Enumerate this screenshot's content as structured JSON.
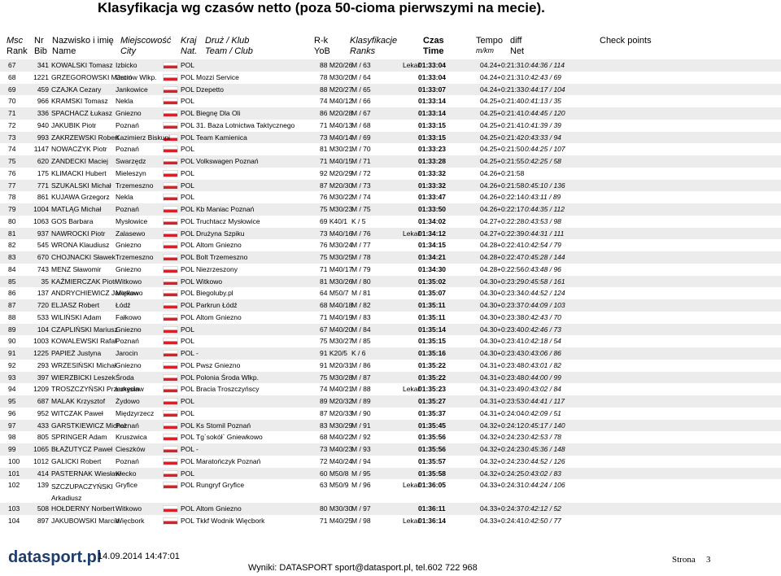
{
  "header": {
    "title": "Klasyfikacja wg czasów netto (poza 50-cioma pierwszymi na mecie).",
    "columns": [
      {
        "top": "Msc",
        "bottom": "Rank"
      },
      {
        "top": "Nr",
        "bottom": "Bib"
      },
      {
        "top": "Nazwisko i imię",
        "bottom": "Name"
      },
      {
        "top": "Miejscowość",
        "bottom": "City"
      },
      {
        "top": "Kraj",
        "bottom": "Nat."
      },
      {
        "top": "Druż / Klub",
        "bottom": "Team / Club"
      },
      {
        "top": "R-k",
        "bottom": "YoB"
      },
      {
        "top": "Klasyfikacje",
        "bottom": "Ranks"
      },
      {
        "top": "Czas",
        "bottom": "Time"
      },
      {
        "top": "Tempo",
        "bottom": "m/km"
      },
      {
        "top": "diff",
        "bottom": "Net"
      },
      {
        "top": "Check points"
      }
    ]
  },
  "table": {
    "rows": [
      {
        "rank": "67",
        "bib": "341",
        "name": "KOWALSKI Tomasz",
        "city": "Izbicko",
        "nat": "POL",
        "yob": "88 M20/26",
        "ranks": "M / 63",
        "note": "Lekař",
        "time": "01:33:04",
        "tempo": "04.24",
        "diff": "+0:21:31",
        "net": "0:44:36 / 114"
      },
      {
        "rank": "68",
        "bib": "1221",
        "name": "GRZEGOROWSKI Marcin",
        "city": "Ostrów Wlkp.",
        "nat": "POL",
        "club": "Mozzi Service",
        "yob": "78 M30/20",
        "ranks": "M / 64",
        "time": "01:33:04",
        "tempo": "04.24",
        "diff": "+0:21:31",
        "net": "0:42:43 / 69"
      },
      {
        "rank": "69",
        "bib": "459",
        "name": "CZAJKA Cezary",
        "city": "Jankowice",
        "nat": "POL",
        "club": "Dzepetto",
        "yob": "88 M20/27",
        "ranks": "M / 65",
        "time": "01:33:07",
        "tempo": "04.24",
        "diff": "+0:21:33",
        "net": "0:44:17 / 104"
      },
      {
        "rank": "70",
        "bib": "966",
        "name": "KRAMSKI Tomasz",
        "city": "Nekla",
        "nat": "POL",
        "yob": "74 M40/12",
        "ranks": "M / 66",
        "time": "01:33:14",
        "tempo": "04.25",
        "diff": "+0:21:40",
        "net": "0:41:13 / 35"
      },
      {
        "rank": "71",
        "bib": "336",
        "name": "SPACHACZ Łukasz",
        "city": "Gniezno",
        "nat": "POL",
        "club": "Biegnę Dla Oli",
        "yob": "86 M20/28",
        "ranks": "M / 67",
        "time": "01:33:14",
        "tempo": "04.25",
        "diff": "+0:21:41",
        "net": "0:44:45 / 120"
      },
      {
        "rank": "72",
        "bib": "940",
        "name": "JAKUBIK Piotr",
        "city": "Poznań",
        "nat": "POL",
        "club": "31. Baza Lotnictwa Taktycznego",
        "yob": "71 M40/13",
        "ranks": "M / 68",
        "time": "01:33:15",
        "tempo": "04.25",
        "diff": "+0:21:41",
        "net": "0:41:39 / 39"
      },
      {
        "rank": "73",
        "bib": "993",
        "name": "ZAKRZEWSKI Robert",
        "city": "Kazimierz Biskupi",
        "nat": "POL",
        "club": "Team Kamienica",
        "yob": "73 M40/14",
        "ranks": "M / 69",
        "time": "01:33:15",
        "tempo": "04.25",
        "diff": "+0:21:42",
        "net": "0:43:33 / 94"
      },
      {
        "rank": "74",
        "bib": "1147",
        "name": "NOWACZYK Piotr",
        "city": "Poznań",
        "nat": "POL",
        "yob": "81 M30/21",
        "ranks": "M / 70",
        "time": "01:33:23",
        "tempo": "04.25",
        "diff": "+0:21:50",
        "net": "0:44:25 / 107"
      },
      {
        "rank": "75",
        "bib": "620",
        "name": "ZANDECKI Maciej",
        "city": "Swarzędz",
        "nat": "POL",
        "club": "Volkswagen Poznań",
        "yob": "71 M40/15",
        "ranks": "M / 71",
        "time": "01:33:28",
        "tempo": "04.25",
        "diff": "+0:21:55",
        "net": "0:42:25 / 58"
      },
      {
        "rank": "76",
        "bib": "175",
        "name": "KLIMACKI Hubert",
        "city": "Mieleszyn",
        "nat": "POL",
        "yob": "92 M20/29",
        "ranks": "M / 72",
        "time": "01:33:32",
        "tempo": "04.26",
        "diff": "+0:21:58"
      },
      {
        "rank": "77",
        "bib": "771",
        "name": "SZUKALSKI Michał",
        "city": "Trzemeszno",
        "nat": "POL",
        "yob": "87 M20/30",
        "ranks": "M / 73",
        "time": "01:33:32",
        "tempo": "04.26",
        "diff": "+0:21:58",
        "net": "0:45:10 / 136"
      },
      {
        "rank": "78",
        "bib": "861",
        "name": "KUJAWA Grzegorz",
        "city": "Nekla",
        "nat": "POL",
        "yob": "76 M30/22",
        "ranks": "M / 74",
        "time": "01:33:47",
        "tempo": "04.26",
        "diff": "+0:22:14",
        "net": "0:43:11 / 89"
      },
      {
        "rank": "79",
        "bib": "1004",
        "name": "MATLĄG Michał",
        "city": "Poznań",
        "nat": "POL",
        "club": "Kb Maniac Poznań",
        "yob": "75 M30/23",
        "ranks": "M / 75",
        "time": "01:33:50",
        "tempo": "04.26",
        "diff": "+0:22:17",
        "net": "0:44:35 / 112"
      },
      {
        "rank": "80",
        "bib": "1063",
        "name": "GOS Barbara",
        "city": "Mysłowice",
        "nat": "POL",
        "club": "Truchtacz Mysłowice",
        "yob": "69 K40/1",
        "ranks": "K / 5",
        "time": "01:34:02",
        "tempo": "04.27",
        "diff": "+0:22:28",
        "net": "0:43:53 / 98"
      },
      {
        "rank": "81",
        "bib": "937",
        "name": "NAWROCKI Piotr",
        "city": "Zalasewo",
        "nat": "POL",
        "club": "Drużyna Szpiku",
        "yob": "73 M40/16",
        "ranks": "M / 76",
        "note": "Lekař",
        "time": "01:34:12",
        "tempo": "04.27",
        "diff": "+0:22:39",
        "net": "0:44:31 / 111"
      },
      {
        "rank": "82",
        "bib": "545",
        "name": "WRONA Klaudiusz",
        "city": "Gniezno",
        "nat": "POL",
        "club": "Altom Gniezno",
        "yob": "76 M30/24",
        "ranks": "M / 77",
        "time": "01:34:15",
        "tempo": "04.28",
        "diff": "+0:22:41",
        "net": "0:42:54 / 79"
      },
      {
        "rank": "83",
        "bib": "670",
        "name": "CHOJNACKI Sławek",
        "city": "Trzemeszno",
        "nat": "POL",
        "club": "Bolt Trzemeszno",
        "yob": "75 M30/25",
        "ranks": "M / 78",
        "time": "01:34:21",
        "tempo": "04.28",
        "diff": "+0:22:47",
        "net": "0:45:28 / 144"
      },
      {
        "rank": "84",
        "bib": "743",
        "name": "MENZ Sławomir",
        "city": "Gniezno",
        "nat": "POL",
        "club": "Niezrzeszony",
        "yob": "71 M40/17",
        "ranks": "M / 79",
        "time": "01:34:30",
        "tempo": "04.28",
        "diff": "+0:22:56",
        "net": "0:43:48 / 96"
      },
      {
        "rank": "85",
        "bib": "35",
        "name": "KAŹMIERCZAK Piotr",
        "city": "Witkowo",
        "nat": "POL",
        "club": "Witkowo",
        "yob": "81 M30/26",
        "ranks": "M / 80",
        "time": "01:35:02",
        "tempo": "04.30",
        "diff": "+0:23:29",
        "net": "0:45:58 / 161"
      },
      {
        "rank": "86",
        "bib": "137",
        "name": "ANDRYCHIEWICZ Jarosław",
        "city": "Miękowo",
        "nat": "POL",
        "club": "Biegoluby.pl",
        "yob": "64 M50/7",
        "ranks": "M / 81",
        "time": "01:35:07",
        "tempo": "04.30",
        "diff": "+0:23:34",
        "net": "0:44:52 / 124"
      },
      {
        "rank": "87",
        "bib": "720",
        "name": "ELJASZ Robert",
        "city": "Łódź",
        "nat": "POL",
        "club": "Parkrun Łódź",
        "yob": "68 M40/18",
        "ranks": "M / 82",
        "time": "01:35:11",
        "tempo": "04.30",
        "diff": "+0:23:37",
        "net": "0:44:09 / 103"
      },
      {
        "rank": "88",
        "bib": "533",
        "name": "WILIŃSKI Adam",
        "city": "Fałkowo",
        "nat": "POL",
        "club": "Altom Gniezno",
        "yob": "71 M40/19",
        "ranks": "M / 83",
        "time": "01:35:11",
        "tempo": "04.30",
        "diff": "+0:23:38",
        "net": "0:42:43 / 70"
      },
      {
        "rank": "89",
        "bib": "104",
        "name": "CZAPLIŃSKI Mariusz",
        "city": "Gniezno",
        "nat": "POL",
        "yob": "67 M40/20",
        "ranks": "M / 84",
        "time": "01:35:14",
        "tempo": "04.30",
        "diff": "+0:23:40",
        "net": "0:42:46 / 73"
      },
      {
        "rank": "90",
        "bib": "1003",
        "name": "KOWALEWSKI Rafał",
        "city": "Poznań",
        "nat": "POL",
        "yob": "75 M30/27",
        "ranks": "M / 85",
        "time": "01:35:15",
        "tempo": "04.30",
        "diff": "+0:23:41",
        "net": "0:42:18 / 54"
      },
      {
        "rank": "91",
        "bib": "1225",
        "name": "PAPIEŻ Justyna",
        "city": "Jarocin",
        "nat": "POL",
        "club": "-",
        "yob": "91 K20/5",
        "ranks": "K / 6",
        "time": "01:35:16",
        "tempo": "04.30",
        "diff": "+0:23:43",
        "net": "0:43:06 / 86"
      },
      {
        "rank": "92",
        "bib": "293",
        "name": "WRZESIŃSKI Michał",
        "city": "Gniezno",
        "nat": "POL",
        "club": "Pwsz Gniezno",
        "yob": "91 M20/31",
        "ranks": "M / 86",
        "time": "01:35:22",
        "tempo": "04.31",
        "diff": "+0:23:48",
        "net": "0:43:01 / 82"
      },
      {
        "rank": "93",
        "bib": "397",
        "name": "WIERZBICKI Leszek",
        "city": "Środa",
        "nat": "POL",
        "club": "Polonia Środa Wlkp.",
        "yob": "75 M30/28",
        "ranks": "M / 87",
        "time": "01:35:22",
        "tempo": "04.31",
        "diff": "+0:23:48",
        "net": "0:44:00 / 99"
      },
      {
        "rank": "94",
        "bib": "1209",
        "name": "TROSZCZYŃSKI Przemysław",
        "city": "Łukęcin",
        "nat": "POL",
        "club": "Bracia Troszczyńscy",
        "yob": "74 M40/21",
        "ranks": "M / 88",
        "note": "Lekař",
        "time": "01:35:23",
        "tempo": "04.31",
        "diff": "+0:23:49",
        "net": "0:43:02 / 84"
      },
      {
        "rank": "95",
        "bib": "687",
        "name": "MALAK Krzysztof",
        "city": "Żydowo",
        "nat": "POL",
        "yob": "89 M20/32",
        "ranks": "M / 89",
        "time": "01:35:27",
        "tempo": "04.31",
        "diff": "+0:23:53",
        "net": "0:44:41 / 117"
      },
      {
        "rank": "96",
        "bib": "952",
        "name": "WITCZAK Paweł",
        "city": "Międzyrzecz",
        "nat": "POL",
        "yob": "87 M20/33",
        "ranks": "M / 90",
        "time": "01:35:37",
        "tempo": "04.31",
        "diff": "+0:24:04",
        "net": "0:42:09 / 51"
      },
      {
        "rank": "97",
        "bib": "433",
        "name": "GARSTKIEWICZ Michał",
        "city": "Poznań",
        "nat": "POL",
        "club": "Ks Stomil Poznań",
        "yob": "83 M30/29",
        "ranks": "M / 91",
        "time": "01:35:45",
        "tempo": "04.32",
        "diff": "+0:24:12",
        "net": "0:45:17 / 140"
      },
      {
        "rank": "98",
        "bib": "805",
        "name": "SPRINGER Adam",
        "city": "Kruszwica",
        "nat": "POL",
        "club": "Tg`sokół` Gniewkowo",
        "yob": "68 M40/22",
        "ranks": "M / 92",
        "time": "01:35:56",
        "tempo": "04.32",
        "diff": "+0:24:23",
        "net": "0:42:53 / 78"
      },
      {
        "rank": "99",
        "bib": "1065",
        "name": "BŁAŻUTYCZ Paweł",
        "city": "Cieszków",
        "nat": "POL",
        "club": "-",
        "yob": "73 M40/23",
        "ranks": "M / 93",
        "time": "01:35:56",
        "tempo": "04.32",
        "diff": "+0:24:23",
        "net": "0:45:36 / 148"
      },
      {
        "rank": "100",
        "bib": "1012",
        "name": "GALICKI Robert",
        "city": "Poznań",
        "nat": "POL",
        "club": "Maratończyk Poznań",
        "yob": "72 M40/24",
        "ranks": "M / 94",
        "time": "01:35:57",
        "tempo": "04.32",
        "diff": "+0:24:23",
        "net": "0:44:52 / 126"
      },
      {
        "rank": "101",
        "bib": "414",
        "name": "PASTERNAK Wiesław",
        "city": "Kłecko",
        "nat": "POL",
        "yob": "60 M50/8",
        "ranks": "M / 95",
        "time": "01:35:58",
        "tempo": "04.32",
        "diff": "+0:24:25",
        "net": "0:43:02 / 83"
      },
      {
        "rank": "102",
        "bib": "139",
        "name": "SZCZUPACZYŃSKI Arkadiusz",
        "city": "Gryfice",
        "nat": "POL",
        "club": "Rungryf Gryfice",
        "yob": "63 M50/9",
        "ranks": "M / 96",
        "note": "Lekař",
        "time": "01:36:05",
        "tempo": "04.33",
        "diff": "+0:24:31",
        "net": "0:44:24 / 106"
      },
      {
        "rank": "103",
        "bib": "508",
        "name": "HOŁDERNY Norbert",
        "city": "Witkowo",
        "nat": "POL",
        "club": "Altom Gniezno",
        "yob": "80 M30/30",
        "ranks": "M / 97",
        "time": "01:36:11",
        "tempo": "04.33",
        "diff": "+0:24:37",
        "net": "0:42:12 / 52"
      },
      {
        "rank": "104",
        "bib": "897",
        "name": "JAKUBOWSKI Marcin",
        "city": "Więcbork",
        "nat": "POL",
        "club": "Tkkf Wodnik Więcbork",
        "yob": "71 M40/25",
        "ranks": "M / 98",
        "note": "Lekař",
        "time": "01:36:14",
        "tempo": "04.33",
        "diff": "+0:24:41",
        "net": "0:42:50 / 77"
      }
    ]
  },
  "footer": {
    "logo": "datasport.pl",
    "date": "14.09.2014 14:47:01",
    "info": "Wyniki: DATASPORT sport@datasport.pl, tel.602 722 968",
    "page_label": "Strona",
    "page": "3"
  }
}
